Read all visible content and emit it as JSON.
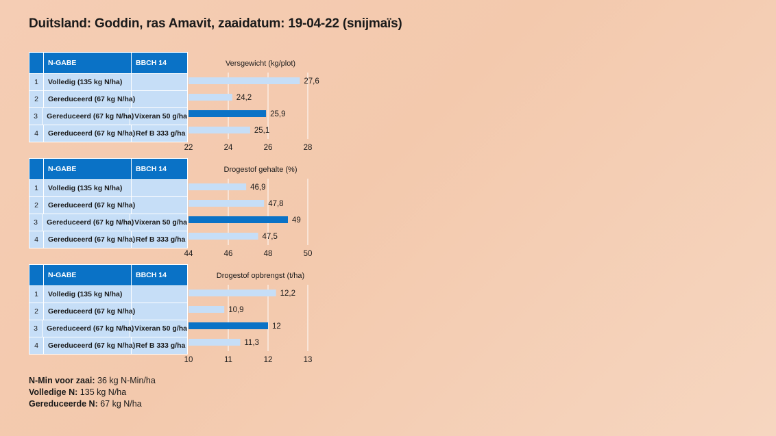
{
  "title": "Duitsland: Goddin, ras Amavit, zaaidatum: 19-04-22 (snijmaïs)",
  "colors": {
    "header": "#0a72c6",
    "row": "#c6def7",
    "bar_light": "#c6def7",
    "bar_highlight": "#0a72c6"
  },
  "chart_data": [
    {
      "type": "bar",
      "title": "Versgewicht (kg/plot)",
      "table_headers": [
        "N-GABE",
        "BBCH 14"
      ],
      "rows": [
        {
          "num": "1",
          "n_gabe": "Volledig (135 kg N/ha)",
          "bbch": ""
        },
        {
          "num": "2",
          "n_gabe": "Gereduceerd (67 kg N/ha)",
          "bbch": ""
        },
        {
          "num": "3",
          "n_gabe": "Gereduceerd (67 kg N/ha)",
          "bbch": "Vixeran 50 g/ha"
        },
        {
          "num": "4",
          "n_gabe": "Gereduceerd (67 kg N/ha)",
          "bbch": "Ref B 333 g/ha"
        }
      ],
      "values": [
        27.6,
        24.2,
        25.9,
        25.1
      ],
      "value_labels": [
        "27,6",
        "24,2",
        "25,9",
        "25,1"
      ],
      "highlight_index": 2,
      "xlim": [
        22,
        28
      ],
      "ticks": [
        22,
        24,
        26,
        28
      ],
      "grid": true
    },
    {
      "type": "bar",
      "title": "Drogestof gehalte (%)",
      "table_headers": [
        "N-GABE",
        "BBCH 14"
      ],
      "rows": [
        {
          "num": "1",
          "n_gabe": "Volledig (135 kg N/ha)",
          "bbch": ""
        },
        {
          "num": "2",
          "n_gabe": "Gereduceerd (67 kg N/ha)",
          "bbch": ""
        },
        {
          "num": "3",
          "n_gabe": "Gereduceerd (67 kg N/ha)",
          "bbch": "Vixeran 50 g/ha"
        },
        {
          "num": "4",
          "n_gabe": "Gereduceerd (67 kg N/ha)",
          "bbch": "Ref B 333 g/ha"
        }
      ],
      "values": [
        46.9,
        47.8,
        49,
        47.5
      ],
      "value_labels": [
        "46,9",
        "47,8",
        "49",
        "47,5"
      ],
      "highlight_index": 2,
      "xlim": [
        44,
        50
      ],
      "ticks": [
        44,
        46,
        48,
        50
      ],
      "grid": true
    },
    {
      "type": "bar",
      "title": "Drogestof opbrengst (t/ha)",
      "table_headers": [
        "N-GABE",
        "BBCH 14"
      ],
      "rows": [
        {
          "num": "1",
          "n_gabe": "Volledig (135 kg N/ha)",
          "bbch": ""
        },
        {
          "num": "2",
          "n_gabe": "Gereduceerd (67 kg N/ha)",
          "bbch": ""
        },
        {
          "num": "3",
          "n_gabe": "Gereduceerd (67 kg N/ha)",
          "bbch": "Vixeran 50 g/ha"
        },
        {
          "num": "4",
          "n_gabe": "Gereduceerd (67 kg N/ha)",
          "bbch": "Ref B 333 g/ha"
        }
      ],
      "values": [
        12.2,
        10.9,
        12,
        11.3
      ],
      "value_labels": [
        "12,2",
        "10,9",
        "12",
        "11,3"
      ],
      "highlight_index": 2,
      "xlim": [
        10,
        13
      ],
      "ticks": [
        10,
        11,
        12,
        13
      ],
      "grid": true
    }
  ],
  "footer": [
    {
      "key": "N-Min voor zaai:",
      "value": "36 kg N-Min/ha"
    },
    {
      "key": "Volledige N:",
      "value": "135 kg N/ha"
    },
    {
      "key": "Gereduceerde N:",
      "value": "67 kg N/ha"
    }
  ]
}
